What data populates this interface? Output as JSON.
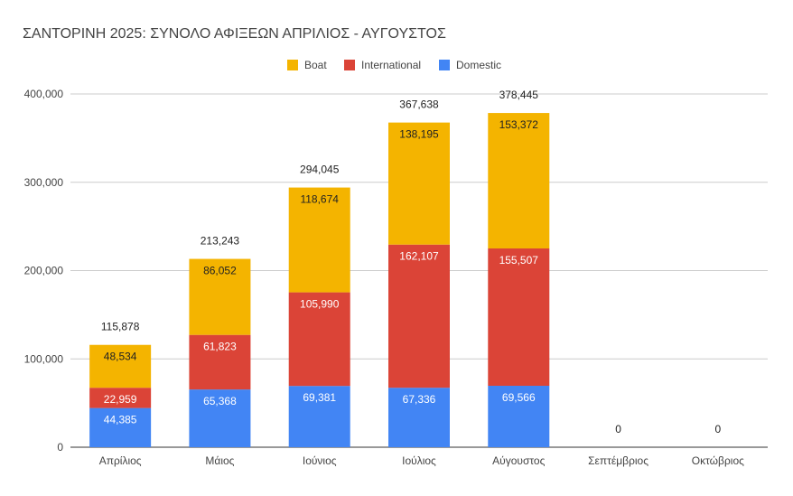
{
  "chart_data": {
    "type": "bar",
    "stacked": true,
    "title": "ΣΑΝΤΟΡΙΝΗ 2025: ΣΥΝΟΛΟ ΑΦΙΞΕΩΝ ΑΠΡΙΛΙΟΣ - ΑΥΓΟΥΣΤΟΣ",
    "xlabel": "",
    "ylabel": "",
    "ylim": [
      0,
      400000
    ],
    "yticks": [
      0,
      100000,
      200000,
      300000,
      400000
    ],
    "ytick_labels": [
      "0",
      "100,000",
      "200,000",
      "300,000",
      "400,000"
    ],
    "grid": true,
    "legend_position": "top-center",
    "categories": [
      "Απρίλιος",
      "Μάιος",
      "Ιούνιος",
      "Ιούλιος",
      "Αύγουστος",
      "Σεπτέμβριος",
      "Οκτώβριος"
    ],
    "series": [
      {
        "name": "Domestic",
        "color": "#4285F4",
        "label_color": "#ffffff",
        "values": [
          44385,
          65368,
          69381,
          67336,
          69566,
          0,
          0
        ],
        "labels": [
          "44,385",
          "65,368",
          "69,381",
          "67,336",
          "69,566",
          "",
          ""
        ]
      },
      {
        "name": "International",
        "color": "#DB4437",
        "label_color": "#ffffff",
        "values": [
          22959,
          61823,
          105990,
          162107,
          155507,
          0,
          0
        ],
        "labels": [
          "22,959",
          "61,823",
          "105,990",
          "162,107",
          "155,507",
          "",
          ""
        ]
      },
      {
        "name": "Boat",
        "color": "#F4B400",
        "label_color": "#222222",
        "values": [
          48534,
          86052,
          118674,
          138195,
          153372,
          0,
          0
        ],
        "labels": [
          "48,534",
          "86,052",
          "118,674",
          "138,195",
          "153,372",
          "",
          ""
        ]
      }
    ],
    "legend_order": [
      "Boat",
      "International",
      "Domestic"
    ],
    "totals": [
      115878,
      213243,
      294045,
      367638,
      378445,
      0,
      0
    ],
    "total_labels": [
      "115,878",
      "213,243",
      "294,045",
      "367,638",
      "378,445",
      "0",
      "0"
    ]
  }
}
